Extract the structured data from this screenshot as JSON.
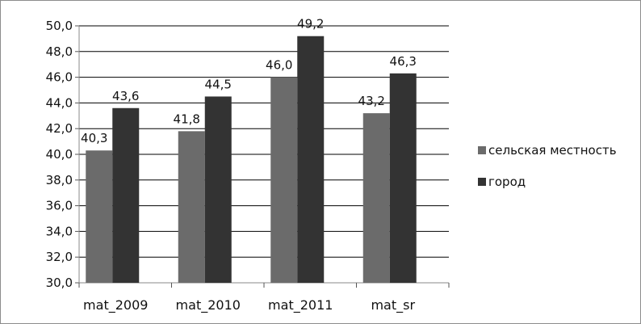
{
  "chart_data": {
    "type": "bar",
    "categories": [
      "mat_2009",
      "mat_2010",
      "mat_2011",
      "mat_sr"
    ],
    "series": [
      {
        "name": "сельская местность",
        "values": [
          40.3,
          41.8,
          46.0,
          43.2
        ],
        "labels": [
          "40,3",
          "41,8",
          "46,0",
          "43,2"
        ],
        "color": "#6b6b6b"
      },
      {
        "name": "город",
        "values": [
          43.6,
          44.5,
          49.2,
          46.3
        ],
        "labels": [
          "43,6",
          "44,5",
          "49,2",
          "46,3"
        ],
        "color": "#333333"
      }
    ],
    "ylim": [
      30,
      50
    ],
    "yticks": [
      "30,0",
      "32,0",
      "34,0",
      "36,0",
      "38,0",
      "40,0",
      "42,0",
      "44,0",
      "46,0",
      "48,0",
      "50,0"
    ],
    "grid": true,
    "legend_position": "right"
  }
}
